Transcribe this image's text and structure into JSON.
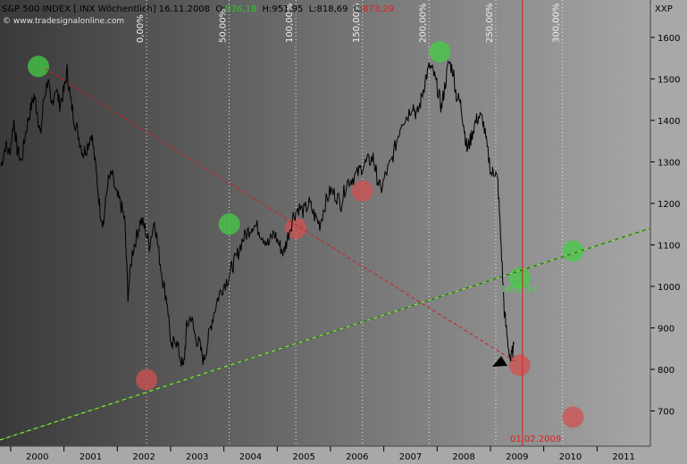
{
  "header": {
    "instrument": "S&P 500 INDEX [.INX Wöchentlich] 16.11.2008",
    "open_label": "O:",
    "open_value": "936,18",
    "high": "H:951,95",
    "low": "L:818,69",
    "close_label": "C:",
    "close_value": "873,29",
    "source": "© www.tradesignalonline.com",
    "currency": "XXP"
  },
  "colors": {
    "price": "#000000",
    "green_marker": "#44cc44",
    "red_marker": "#d05050",
    "support_line": "#2a7a2a",
    "support_dash": "#b8e850",
    "resistance_line": "#d02020",
    "date_line": "#d82020",
    "background_left": "#3c3c3c",
    "background_right": "#a4a4a4"
  },
  "date_marker": "01.02.2009",
  "price_label": "1052,14",
  "chart_data": {
    "type": "line",
    "title": "S&P 500 INDEX [.INX Wöchentlich] 16.11.2008",
    "xlabel": "",
    "ylabel": "",
    "x_ticks": [
      "2000",
      "2001",
      "2002",
      "2003",
      "2004",
      "2005",
      "2006",
      "2007",
      "2008",
      "2009",
      "2010",
      "2011"
    ],
    "x_range": [
      1999.3,
      2011.5
    ],
    "y_ticks": [
      700,
      800,
      900,
      1000,
      1100,
      1200,
      1300,
      1400,
      1500,
      1600
    ],
    "ylim": [
      615,
      1690
    ],
    "vertical_labels": [
      {
        "x": 2002.05,
        "text": "0,00%"
      },
      {
        "x": 2003.6,
        "text": "50,00%"
      },
      {
        "x": 2004.85,
        "text": "100,00%"
      },
      {
        "x": 2006.1,
        "text": "150,00%"
      },
      {
        "x": 2007.35,
        "text": "200,00%"
      },
      {
        "x": 2008.6,
        "text": "250,00%"
      },
      {
        "x": 2009.85,
        "text": "300,00%"
      }
    ],
    "series": [
      {
        "values": [
          [
            1999.32,
            1290
          ],
          [
            1999.4,
            1340
          ],
          [
            1999.48,
            1320
          ],
          [
            1999.56,
            1400
          ],
          [
            1999.62,
            1330
          ],
          [
            1999.7,
            1300
          ],
          [
            1999.78,
            1370
          ],
          [
            1999.86,
            1420
          ],
          [
            1999.94,
            1460
          ],
          [
            2000.0,
            1420
          ],
          [
            2000.06,
            1360
          ],
          [
            2000.12,
            1450
          ],
          [
            2000.2,
            1500
          ],
          [
            2000.26,
            1430
          ],
          [
            2000.34,
            1480
          ],
          [
            2000.42,
            1440
          ],
          [
            2000.5,
            1470
          ],
          [
            2000.56,
            1520
          ],
          [
            2000.62,
            1450
          ],
          [
            2000.7,
            1400
          ],
          [
            2000.78,
            1360
          ],
          [
            2000.86,
            1320
          ],
          [
            2000.94,
            1340
          ],
          [
            2001.02,
            1370
          ],
          [
            2001.1,
            1280
          ],
          [
            2001.18,
            1180
          ],
          [
            2001.24,
            1150
          ],
          [
            2001.32,
            1250
          ],
          [
            2001.4,
            1270
          ],
          [
            2001.48,
            1220
          ],
          [
            2001.56,
            1200
          ],
          [
            2001.64,
            1160
          ],
          [
            2001.7,
            980
          ],
          [
            2001.78,
            1080
          ],
          [
            2001.86,
            1120
          ],
          [
            2001.94,
            1160
          ],
          [
            2002.02,
            1140
          ],
          [
            2002.1,
            1100
          ],
          [
            2002.2,
            1160
          ],
          [
            2002.28,
            1080
          ],
          [
            2002.36,
            1010
          ],
          [
            2002.44,
            960
          ],
          [
            2002.52,
            840
          ],
          [
            2002.58,
            880
          ],
          [
            2002.66,
            840
          ],
          [
            2002.74,
            800
          ],
          [
            2002.8,
            900
          ],
          [
            2002.88,
            930
          ],
          [
            2002.96,
            880
          ],
          [
            2003.04,
            860
          ],
          [
            2003.12,
            820
          ],
          [
            2003.2,
            870
          ],
          [
            2003.28,
            920
          ],
          [
            2003.38,
            970
          ],
          [
            2003.48,
            1000
          ],
          [
            2003.58,
            1020
          ],
          [
            2003.66,
            1050
          ],
          [
            2003.74,
            1070
          ],
          [
            2003.84,
            1110
          ],
          [
            2003.94,
            1130
          ],
          [
            2004.04,
            1150
          ],
          [
            2004.14,
            1140
          ],
          [
            2004.24,
            1120
          ],
          [
            2004.34,
            1100
          ],
          [
            2004.44,
            1130
          ],
          [
            2004.54,
            1100
          ],
          [
            2004.62,
            1080
          ],
          [
            2004.7,
            1120
          ],
          [
            2004.8,
            1170
          ],
          [
            2004.9,
            1190
          ],
          [
            2005.0,
            1180
          ],
          [
            2005.1,
            1200
          ],
          [
            2005.2,
            1170
          ],
          [
            2005.3,
            1150
          ],
          [
            2005.4,
            1200
          ],
          [
            2005.5,
            1230
          ],
          [
            2005.6,
            1220
          ],
          [
            2005.7,
            1200
          ],
          [
            2005.8,
            1250
          ],
          [
            2005.9,
            1260
          ],
          [
            2006.0,
            1270
          ],
          [
            2006.1,
            1290
          ],
          [
            2006.2,
            1300
          ],
          [
            2006.3,
            1310
          ],
          [
            2006.36,
            1270
          ],
          [
            2006.44,
            1230
          ],
          [
            2006.54,
            1270
          ],
          [
            2006.64,
            1300
          ],
          [
            2006.74,
            1350
          ],
          [
            2006.84,
            1400
          ],
          [
            2006.94,
            1410
          ],
          [
            2007.04,
            1440
          ],
          [
            2007.12,
            1410
          ],
          [
            2007.2,
            1450
          ],
          [
            2007.28,
            1500
          ],
          [
            2007.36,
            1530
          ],
          [
            2007.44,
            1510
          ],
          [
            2007.52,
            1470
          ],
          [
            2007.58,
            1430
          ],
          [
            2007.64,
            1480
          ],
          [
            2007.72,
            1540
          ],
          [
            2007.8,
            1520
          ],
          [
            2007.86,
            1460
          ],
          [
            2007.94,
            1440
          ],
          [
            2008.0,
            1390
          ],
          [
            2008.06,
            1330
          ],
          [
            2008.12,
            1350
          ],
          [
            2008.2,
            1390
          ],
          [
            2008.28,
            1410
          ],
          [
            2008.36,
            1400
          ],
          [
            2008.44,
            1330
          ],
          [
            2008.52,
            1270
          ],
          [
            2008.58,
            1280
          ],
          [
            2008.64,
            1250
          ],
          [
            2008.7,
            1100
          ],
          [
            2008.76,
            940
          ],
          [
            2008.82,
            870
          ],
          [
            2008.88,
            820
          ],
          [
            2008.94,
            860
          ]
        ]
      }
    ],
    "support_line": {
      "from": [
        1999.3,
        630
      ],
      "to": [
        2011.5,
        1140
      ]
    },
    "resistance_line": {
      "from": [
        2000.15,
        1525
      ],
      "to": [
        2008.95,
        820
      ]
    },
    "date_line_x": 2009.1,
    "green_markers": [
      [
        2000.02,
        1530
      ],
      [
        2007.55,
        1565
      ],
      [
        2003.6,
        1150
      ],
      [
        2009.05,
        1020
      ],
      [
        2010.05,
        1085
      ]
    ],
    "red_markers": [
      [
        2002.05,
        775
      ],
      [
        2004.85,
        1140
      ],
      [
        2006.1,
        1230
      ],
      [
        2009.05,
        810
      ],
      [
        2010.05,
        685
      ]
    ]
  }
}
